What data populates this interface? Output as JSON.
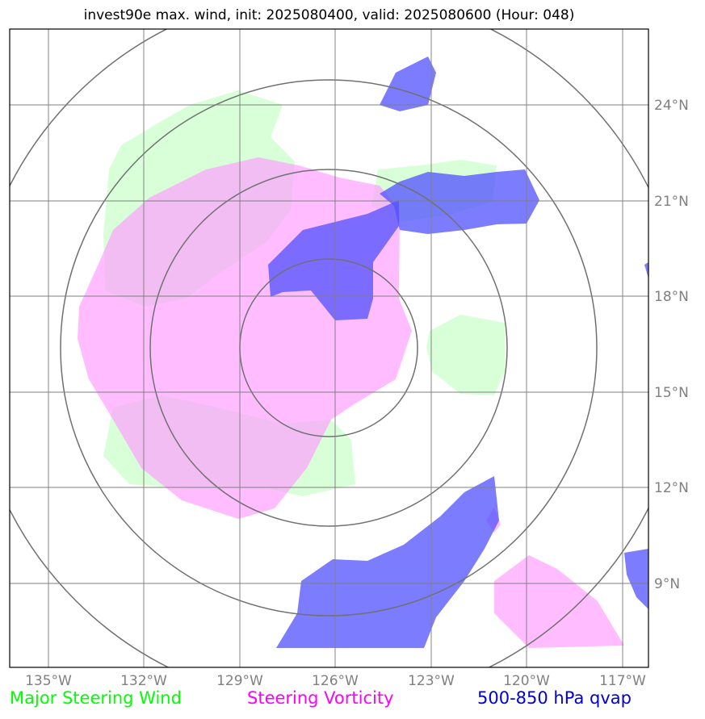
{
  "title": "invest90e max. wind, init: 2025080400, valid: 2025080600 (Hour: 048)",
  "map": {
    "lat_ticks": [
      "24°N",
      "21°N",
      "18°N",
      "15°N",
      "12°N",
      "9°N"
    ],
    "lon_ticks": [
      "135°W",
      "132°W",
      "129°W",
      "126°W",
      "123°W",
      "120°W",
      "117°W"
    ],
    "range_rings": 4
  },
  "layers": [
    {
      "name": "Major Steering Wind",
      "color": "#ccffcc"
    },
    {
      "name": "Steering Vorticity",
      "color": "#ff99ff"
    },
    {
      "name": "500-850 hPa qvap",
      "color": "#4040ff"
    }
  ],
  "legend": {
    "wind": "Major Steering Wind",
    "vorticity": "Steering Vorticity",
    "qvap": "500-850 hPa qvap"
  },
  "colors": {
    "wind_label": "#00ff00",
    "vorticity_label": "#ff00ff",
    "qvap_label": "#0000d8",
    "grid": "#808080"
  }
}
